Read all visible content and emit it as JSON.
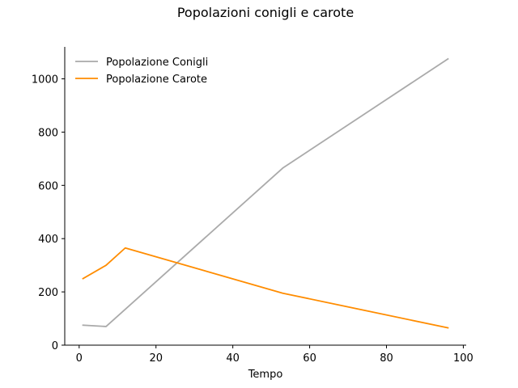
{
  "chart_data": {
    "type": "line",
    "title": "Popolazioni conigli e carote",
    "xlabel": "Tempo",
    "ylabel": "",
    "xlim": [
      -3.75,
      100.75
    ],
    "ylim": [
      0,
      1120
    ],
    "xticks": [
      0,
      20,
      40,
      60,
      80,
      100
    ],
    "yticks": [
      0,
      200,
      400,
      600,
      800,
      1000
    ],
    "grid": false,
    "legend_position": "top-left",
    "series": [
      {
        "name": "Popolazione Conigli",
        "color": "#aaaaaa",
        "x": [
          1,
          7,
          53,
          96
        ],
        "y": [
          75,
          70,
          665,
          1075
        ]
      },
      {
        "name": "Popolazione Carote",
        "color": "#ff8c00",
        "x": [
          1,
          7,
          12,
          53,
          96
        ],
        "y": [
          250,
          300,
          365,
          195,
          65
        ]
      }
    ]
  }
}
